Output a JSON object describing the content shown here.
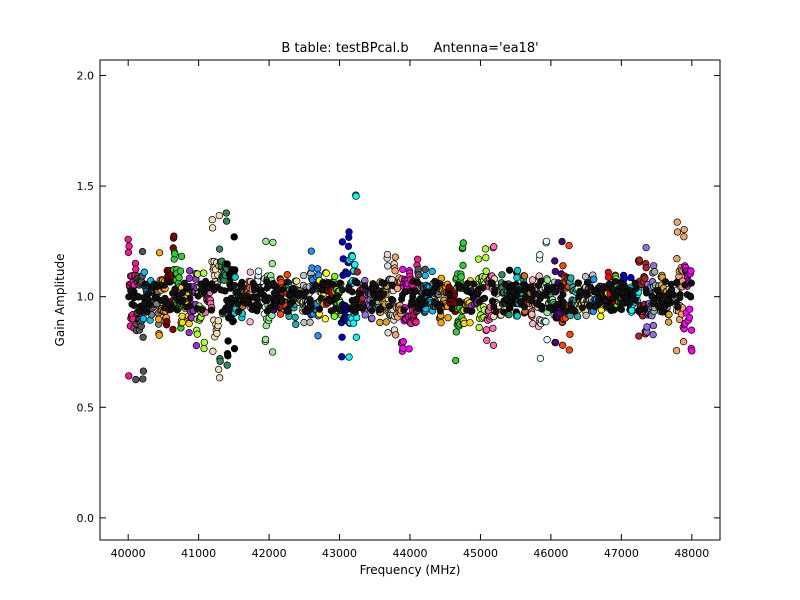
{
  "chart_data": {
    "type": "scatter",
    "title": "B table: testBPcal.b      Antenna='ea18'",
    "xlabel": "Frequency (MHz)",
    "ylabel": "Gain Amplitude",
    "xlim": [
      39600,
      48400
    ],
    "ylim": [
      -0.1,
      2.07
    ],
    "xticks": [
      40000,
      41000,
      42000,
      43000,
      44000,
      45000,
      46000,
      47000,
      48000
    ],
    "xtick_labels": [
      "40000",
      "41000",
      "42000",
      "43000",
      "44000",
      "45000",
      "46000",
      "47000",
      "48000"
    ],
    "yticks": [
      0.0,
      0.5,
      1.0,
      1.5,
      2.0
    ],
    "ytick_labels": [
      "0.0",
      "0.5",
      "1.0",
      "1.5",
      "2.0"
    ],
    "grid": false,
    "legend": "none",
    "marker": "circle",
    "marker_edge_color": "#000000",
    "frequency_range": [
      40000,
      48000
    ],
    "baseline_amplitude": 1.0,
    "spw_colors": [
      "#ff1493",
      "#555555",
      "#00bfff",
      "#808080",
      "#ffa500",
      "#8b0000",
      "#32cd32",
      "#ffd700",
      "#9932cc",
      "#adff2f",
      "#ff69b4",
      "#f5deb3",
      "#2e8b57",
      "#000000",
      "#00ced1",
      "#d2691e",
      "#ffb6c1",
      "#e0ffff",
      "#90ee90",
      "#4b0082",
      "#ff4500",
      "#20b2aa",
      "#f0e68c",
      "#c0c0c0",
      "#1e90ff",
      "#ffff00",
      "#ff0000",
      "#7cfc00",
      "#0000cd",
      "#00ffff",
      "#b22222",
      "#9370db",
      "#8fbc8f",
      "#daa520",
      "#dcdcdc",
      "#f4a460",
      "#ff00ff"
    ],
    "features": [
      {
        "x": 40100,
        "ymin": 0.61,
        "ymax": 1.26
      },
      {
        "x": 40500,
        "ymin": 0.82,
        "ymax": 1.2
      },
      {
        "x": 40650,
        "ymin": 0.85,
        "ymax": 1.31
      },
      {
        "x": 41000,
        "ymin": 0.73,
        "ymax": 1.12
      },
      {
        "x": 41280,
        "ymin": 0.51,
        "ymax": 1.41
      },
      {
        "x": 41450,
        "ymin": 0.7,
        "ymax": 1.32
      },
      {
        "x": 42000,
        "ymin": 0.72,
        "ymax": 1.28
      },
      {
        "x": 42650,
        "ymin": 0.8,
        "ymax": 1.23
      },
      {
        "x": 43100,
        "ymin": 0.7,
        "ymax": 1.47
      },
      {
        "x": 43800,
        "ymin": 0.77,
        "ymax": 1.22
      },
      {
        "x": 44000,
        "ymin": 0.68,
        "ymax": 1.2
      },
      {
        "x": 44700,
        "ymin": 0.66,
        "ymax": 1.26
      },
      {
        "x": 45050,
        "ymin": 0.73,
        "ymax": 1.24
      },
      {
        "x": 45900,
        "ymin": 0.67,
        "ymax": 1.26
      },
      {
        "x": 46200,
        "ymin": 0.75,
        "ymax": 1.25
      },
      {
        "x": 47350,
        "ymin": 0.78,
        "ymax": 1.23
      },
      {
        "x": 47900,
        "ymin": 0.69,
        "ymax": 1.34
      }
    ]
  }
}
